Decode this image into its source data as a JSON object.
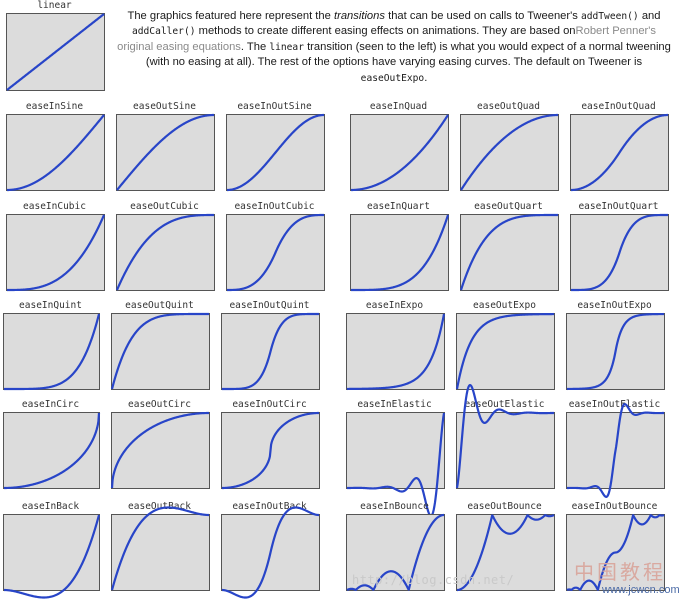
{
  "description": {
    "p1": "The graphics featured here represent the ",
    "em1": "transitions",
    "p2": " that can be used on calls to Tweener's ",
    "code1": "addTween()",
    "p3": " and ",
    "code2": "addCaller()",
    "p4": " methods to create different easing effects on animations. They are based on",
    "link": "Robert Penner's original easing equations",
    "p5": ". The ",
    "code3": "linear",
    "p6": " transition (seen to the left) is what you would expect of a normal tweening (with no easing at all). The rest of the options have varying easing curves. The default on Tweener is ",
    "code4": "easeOutExpo",
    "p7": "."
  },
  "style": {
    "curve_color": "#2845c8",
    "panel_bg": "#dcdcdc",
    "panel_border": "#555555"
  },
  "cells": [
    {
      "label": "linear",
      "ease": "linear"
    },
    {
      "label": "easeInSine",
      "ease": "easeInSine"
    },
    {
      "label": "easeOutSine",
      "ease": "easeOutSine"
    },
    {
      "label": "easeInOutSine",
      "ease": "easeInOutSine"
    },
    {
      "label": "easeInQuad",
      "ease": "easeInQuad"
    },
    {
      "label": "easeOutQuad",
      "ease": "easeOutQuad"
    },
    {
      "label": "easeInOutQuad",
      "ease": "easeInOutQuad"
    },
    {
      "label": "easeInCubic",
      "ease": "easeInCubic"
    },
    {
      "label": "easeOutCubic",
      "ease": "easeOutCubic"
    },
    {
      "label": "easeInOutCubic",
      "ease": "easeInOutCubic"
    },
    {
      "label": "easeInQuart",
      "ease": "easeInQuart"
    },
    {
      "label": "easeOutQuart",
      "ease": "easeOutQuart"
    },
    {
      "label": "easeInOutQuart",
      "ease": "easeInOutQuart"
    },
    {
      "label": "easeInQuint",
      "ease": "easeInQuint"
    },
    {
      "label": "easeOutQuint",
      "ease": "easeOutQuint"
    },
    {
      "label": "easeInOutQuint",
      "ease": "easeInOutQuint"
    },
    {
      "label": "easeInExpo",
      "ease": "easeInExpo"
    },
    {
      "label": "easeOutExpo",
      "ease": "easeOutExpo"
    },
    {
      "label": "easeInOutExpo",
      "ease": "easeInOutExpo"
    },
    {
      "label": "easeInCirc",
      "ease": "easeInCirc"
    },
    {
      "label": "easeOutCirc",
      "ease": "easeOutCirc"
    },
    {
      "label": "easeInOutCirc",
      "ease": "easeInOutCirc"
    },
    {
      "label": "easeInElastic",
      "ease": "easeInElastic"
    },
    {
      "label": "easeOutElastic",
      "ease": "easeOutElastic"
    },
    {
      "label": "easeInOutElastic",
      "ease": "easeInOutElastic"
    },
    {
      "label": "easeInBack",
      "ease": "easeInBack"
    },
    {
      "label": "easeOutBack",
      "ease": "easeOutBack"
    },
    {
      "label": "easeInOutBack",
      "ease": "easeInOutBack"
    },
    {
      "label": "easeInBounce",
      "ease": "easeInBounce"
    },
    {
      "label": "easeOutBounce",
      "ease": "easeOutBounce"
    },
    {
      "label": "easeInOutBounce",
      "ease": "easeInOutBounce"
    }
  ],
  "watermark": {
    "url": "http://blog.csdn.net/",
    "logo_cn": "中国教程",
    "logo_site": "www.jcwcn.com"
  }
}
